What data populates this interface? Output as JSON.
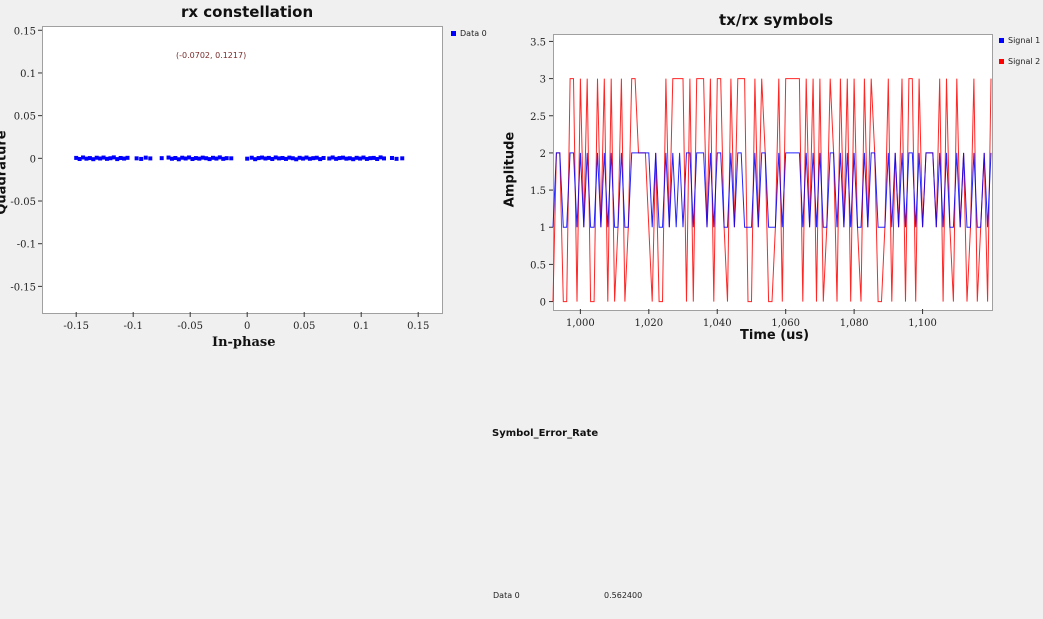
{
  "constellation": {
    "title": "rx constellation",
    "xlabel": "In-phase",
    "ylabel": "Quadrature",
    "legend": [
      {
        "name": "Data 0",
        "color": "#0000ff"
      }
    ],
    "marker_annotation": "(-0.0702, 0.1217)"
  },
  "symbols": {
    "title": "tx/rx symbols",
    "xlabel": "Time (us)",
    "ylabel": "Amplitude",
    "legend": [
      {
        "name": "Signal 1",
        "color": "#0000ff"
      },
      {
        "name": "Signal 2",
        "color": "#ff0000"
      }
    ]
  },
  "ser": {
    "title": "Symbol_Error_Rate",
    "label": "Data 0",
    "value": "0.562400"
  },
  "chart_data": [
    {
      "type": "scatter",
      "title": "rx constellation",
      "xlabel": "In-phase",
      "ylabel": "Quadrature",
      "xlim": [
        -0.18,
        0.17
      ],
      "ylim": [
        -0.18,
        0.155
      ],
      "x_ticks": [
        "-0.15",
        "-0.1",
        "-0.05",
        "0",
        "0.05",
        "0.1",
        "0.15"
      ],
      "y_ticks": [
        "0.15",
        "0.1",
        "0.05",
        "0",
        "-0.05",
        "-0.1",
        "-0.15"
      ],
      "grid": false,
      "legend_position": "outside-top-right",
      "series": [
        {
          "name": "Data 0",
          "color": "#0000ff",
          "x": [
            -0.15,
            -0.147,
            -0.144,
            -0.141,
            -0.138,
            -0.135,
            -0.132,
            -0.129,
            -0.126,
            -0.123,
            -0.12,
            -0.117,
            -0.114,
            -0.111,
            -0.108,
            -0.105,
            -0.097,
            -0.093,
            -0.089,
            -0.085,
            -0.075,
            -0.069,
            -0.066,
            -0.063,
            -0.06,
            -0.057,
            -0.054,
            -0.051,
            -0.048,
            -0.045,
            -0.042,
            -0.039,
            -0.036,
            -0.033,
            -0.03,
            -0.027,
            -0.024,
            -0.021,
            -0.018,
            -0.014,
            0.0,
            0.004,
            0.007,
            0.01,
            0.013,
            0.016,
            0.019,
            0.022,
            0.025,
            0.028,
            0.031,
            0.034,
            0.037,
            0.04,
            0.043,
            0.046,
            0.049,
            0.052,
            0.055,
            0.058,
            0.061,
            0.064,
            0.067,
            0.072,
            0.075,
            0.078,
            0.081,
            0.084,
            0.087,
            0.09,
            0.093,
            0.096,
            0.099,
            0.102,
            0.105,
            0.108,
            0.111,
            0.114,
            0.117,
            0.12,
            0.127,
            0.131,
            0.136
          ],
          "y": [
            0.0005,
            -0.0008,
            0.001,
            -0.0004,
            0.0003,
            -0.001,
            0.0007,
            -0.0002,
            0.0009,
            -0.0006,
            0.0001,
            0.0011,
            -0.0009,
            0.0004,
            -0.0003,
            0.0006,
            0.0,
            -0.0007,
            0.0008,
            -0.0001,
            0.0002,
            0.0009,
            -0.0005,
            0.0004,
            -0.0011,
            0.0007,
            -0.0002,
            0.001,
            -0.0008,
            0.0003,
            -0.0004,
            0.0008,
            0.0001,
            -0.0009,
            0.0006,
            -0.0003,
            0.0011,
            -0.0006,
            0.0002,
            0.0,
            -0.0004,
            0.0007,
            -0.001,
            0.0003,
            0.0009,
            -0.0002,
            0.0005,
            -0.0008,
            0.001,
            -0.0001,
            0.0004,
            -0.0007,
            0.0008,
            0.0001,
            -0.0011,
            0.0006,
            -0.0003,
            0.0009,
            -0.0005,
            0.0002,
            0.0007,
            -0.0009,
            0.0004,
            -0.0002,
            0.001,
            -0.0006,
            0.0003,
            0.0008,
            -0.0004,
            0.0001,
            -0.001,
            0.0006,
            -0.0003,
            0.0009,
            -0.0007,
            0.0002,
            0.0005,
            -0.0008,
            0.0011,
            -0.0001,
            0.0004,
            -0.0006,
            0.0
          ]
        }
      ]
    },
    {
      "type": "line",
      "title": "tx/rx symbols",
      "xlabel": "Time (us)",
      "ylabel": "Amplitude",
      "xlim": [
        992,
        1120
      ],
      "ylim": [
        -0.1,
        3.6
      ],
      "x_ticks": [
        "1,000",
        "1,020",
        "1,040",
        "1,060",
        "1,080",
        "1,100"
      ],
      "y_ticks": [
        "3.5",
        "3",
        "2.5",
        "2",
        "1.5",
        "1",
        "0.5",
        "0"
      ],
      "grid": false,
      "legend_position": "outside-top-right",
      "x": [
        992,
        993,
        994,
        995,
        996,
        997,
        998,
        999,
        1000,
        1001,
        1002,
        1003,
        1004,
        1005,
        1006,
        1007,
        1008,
        1009,
        1010,
        1011,
        1012,
        1013,
        1014,
        1015,
        1016,
        1017,
        1018,
        1019,
        1020,
        1021,
        1022,
        1023,
        1024,
        1025,
        1026,
        1027,
        1028,
        1029,
        1030,
        1031,
        1032,
        1033,
        1034,
        1035,
        1036,
        1037,
        1038,
        1039,
        1040,
        1041,
        1042,
        1043,
        1044,
        1045,
        1046,
        1047,
        1048,
        1049,
        1050,
        1051,
        1052,
        1053,
        1054,
        1055,
        1056,
        1057,
        1058,
        1059,
        1060,
        1061,
        1062,
        1063,
        1064,
        1065,
        1066,
        1067,
        1068,
        1069,
        1070,
        1071,
        1072,
        1073,
        1074,
        1075,
        1076,
        1077,
        1078,
        1079,
        1080,
        1081,
        1082,
        1083,
        1084,
        1085,
        1086,
        1087,
        1088,
        1089,
        1090,
        1091,
        1092,
        1093,
        1094,
        1095,
        1096,
        1097,
        1098,
        1099,
        1100,
        1101,
        1102,
        1103,
        1104,
        1105,
        1106,
        1107,
        1108,
        1109,
        1110,
        1111,
        1112,
        1113,
        1114,
        1115,
        1116,
        1117,
        1118,
        1119,
        1120
      ],
      "series": [
        {
          "name": "Signal 1",
          "color": "#0000ff",
          "values": [
            1,
            2,
            2,
            1,
            1,
            2,
            2,
            1,
            2,
            1,
            2,
            1,
            1,
            2,
            1,
            2,
            1,
            2,
            1,
            1,
            2,
            1,
            1,
            2,
            2,
            2,
            2,
            2,
            2,
            1,
            2,
            1,
            1,
            2,
            1,
            2,
            1,
            2,
            1,
            2,
            2,
            1,
            2,
            2,
            2,
            1,
            2,
            1,
            2,
            2,
            1,
            1,
            2,
            1,
            2,
            2,
            1,
            1,
            1,
            2,
            1,
            2,
            2,
            1,
            1,
            1,
            2,
            1,
            2,
            2,
            2,
            2,
            2,
            1,
            2,
            1,
            2,
            1,
            2,
            1,
            1,
            2,
            2,
            1,
            2,
            1,
            2,
            1,
            2,
            1,
            1,
            2,
            1,
            2,
            2,
            1,
            1,
            1,
            2,
            1,
            2,
            1,
            2,
            1,
            2,
            2,
            1,
            2,
            1,
            2,
            2,
            2,
            1,
            2,
            1,
            2,
            1,
            1,
            2,
            1,
            2,
            1,
            1,
            2,
            1,
            1,
            2,
            1,
            2
          ]
        },
        {
          "name": "Signal 2",
          "color": "#ff0000",
          "values": [
            0,
            2,
            2,
            0,
            0,
            3,
            3,
            0,
            3,
            1,
            3,
            0,
            0,
            3,
            1,
            3,
            0,
            3,
            0,
            1,
            3,
            0,
            1,
            3,
            3,
            2,
            2,
            2,
            1,
            0,
            2,
            0,
            0,
            3,
            1,
            3,
            3,
            3,
            3,
            0,
            3,
            0,
            3,
            3,
            3,
            1,
            3,
            0,
            3,
            3,
            1,
            0,
            3,
            1,
            3,
            3,
            3,
            0,
            0,
            3,
            1,
            3,
            2,
            0,
            0,
            1,
            3,
            0,
            3,
            3,
            3,
            3,
            3,
            0,
            3,
            1,
            3,
            0,
            3,
            0,
            1,
            3,
            2,
            0,
            3,
            1,
            3,
            0,
            3,
            1,
            0,
            3,
            1,
            3,
            2,
            0,
            0,
            1,
            3,
            0,
            2,
            1,
            3,
            0,
            3,
            3,
            0,
            3,
            1,
            2,
            2,
            2,
            1,
            3,
            0,
            3,
            1,
            0,
            3,
            1,
            2,
            0,
            1,
            3,
            0,
            1,
            2,
            0,
            3
          ]
        }
      ]
    }
  ]
}
